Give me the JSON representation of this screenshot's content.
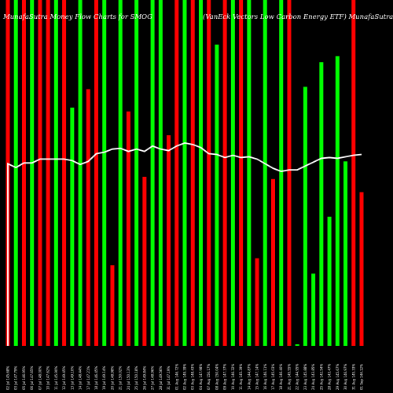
{
  "chart_data": {
    "type": "bar",
    "title_left": "MunafaSutra Money Flow Charts for SMOG",
    "title_right": "(VanEck Vectors Low Carbon Energy ETF) MunafaSutra.com",
    "ylim": [
      0,
      450
    ],
    "categories": [
      "02 Jul 145.68%",
      "03 Jul 147.79%",
      "05 Jul 146.95%",
      "06 Jul 147.65%",
      "07 Jul 148.00%",
      "10 Jul 147.62%",
      "11 Jul 145.90%",
      "12 Jul 149.45%",
      "13 Jul 149.10%",
      "14 Jul 148.44%",
      "17 Jul 147.21%",
      "18 Jul 146.45%",
      "19 Jul 149.14%",
      "20 Jul 148.98%",
      "21 Jul 150.02%",
      "24 Jul 150.13%",
      "25 Jul 150.18%",
      "26 Jul 149.84%",
      "27 Jul 148.96%",
      "28 Jul 149.56%",
      "31 Jul 147.19%",
      "01 Aug 146.72%",
      "02 Aug 149.39%",
      "03 Aug 148.43%",
      "04 Aug 147.98%",
      "07 Aug 150.17%",
      "08 Aug 150.04%",
      "09 Aug 147.37%",
      "10 Aug 146.32%",
      "11 Aug 145.39%",
      "14 Aug 144.87%",
      "15 Aug 147.14%",
      "16 Aug 146.11%",
      "17 Aug 145.03%",
      "18 Aug 146.40%",
      "21 Aug 145.55%",
      "22 Aug 144.95%",
      "23 Aug 145.88%",
      "24 Aug 143.85%",
      "25 Aug 142.54%",
      "28 Aug 143.47%",
      "29 Aug 145.67%",
      "30 Aug 146.97%",
      "31 Aug 145.33%",
      "01 Sep 144.12%"
    ],
    "series": [
      {
        "values": [
          450,
          450,
          450,
          450,
          450,
          450,
          450,
          450,
          310,
          450,
          334,
          450,
          450,
          105,
          450,
          305,
          450,
          220,
          450,
          450,
          274,
          450,
          450,
          450,
          450,
          450,
          392,
          450,
          450,
          450,
          450,
          114,
          450,
          217,
          450,
          450,
          2,
          337,
          94,
          369,
          168,
          377,
          240,
          450,
          200
        ],
        "directions": [
          "down",
          "up",
          "down",
          "up",
          "down",
          "down",
          "up",
          "down",
          "up",
          "up",
          "down",
          "down",
          "up",
          "down",
          "up",
          "down",
          "up",
          "down",
          "up",
          "up",
          "down",
          "down",
          "up",
          "down",
          "up",
          "down",
          "up",
          "down",
          "up",
          "down",
          "up",
          "down",
          "up",
          "down",
          "up",
          "down",
          "up",
          "up",
          "up",
          "up",
          "up",
          "up",
          "up",
          "down",
          "down"
        ]
      },
      {
        "values": [
          237,
          232,
          238,
          238,
          243,
          243,
          243,
          243,
          241,
          236,
          240,
          250,
          252,
          256,
          257,
          253,
          256,
          253,
          260,
          256,
          254,
          260,
          264,
          262,
          258,
          250,
          249,
          245,
          248,
          245,
          246,
          243,
          237,
          231,
          227,
          229,
          229,
          234,
          239,
          244,
          245,
          244,
          246,
          248,
          249
        ]
      }
    ],
    "colors": {
      "up": "#00ff00",
      "down": "#ff0000",
      "line": "#ffffff",
      "background": "#000000"
    }
  }
}
